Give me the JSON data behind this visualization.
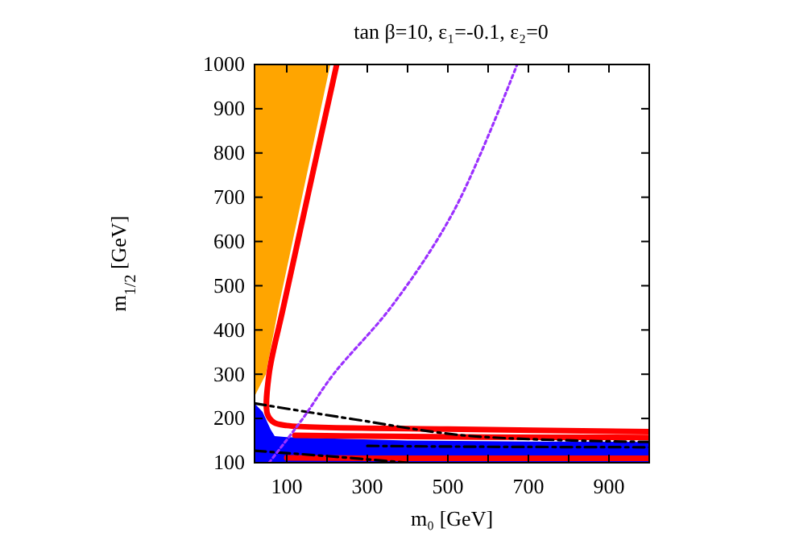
{
  "chart_data": {
    "type": "line",
    "title": "tan β=10,  ε₁=-0.1,  ε₂=0",
    "xlabel": "m₀  [GeV]",
    "ylabel": "m$_{1/2}$  [GeV]",
    "xlim": [
      20,
      1000
    ],
    "ylim": [
      100,
      1000
    ],
    "xticks": [
      100,
      {
        "value": 200,
        "label": null
      },
      300,
      {
        "value": 400,
        "label": null
      },
      500,
      {
        "value": 600,
        "label": null
      },
      700,
      {
        "value": 800,
        "label": null
      },
      900
    ],
    "yticks": [
      100,
      200,
      300,
      400,
      500,
      600,
      700,
      800,
      900,
      1000
    ],
    "grid": false,
    "legend": false,
    "series": [
      {
        "type": "area",
        "color": "#ffa500",
        "x": [
          20,
          20,
          48,
          80,
          120,
          208
        ],
        "values": [
          1000,
          250,
          300,
          453,
          624,
          1000
        ]
      },
      {
        "type": "area",
        "color": "#0000ff",
        "x": [
          20,
          40,
          60,
          70,
          100,
          200,
          400,
          700,
          1000
        ],
        "values": [
          234,
          215,
          175,
          160,
          158,
          155,
          150,
          148,
          147
        ]
      },
      {
        "type": "line",
        "color": "#ff0000",
        "line_style": "solid",
        "x": [
          224,
          92,
          56,
          52,
          68,
          100,
          500,
          1000
        ],
        "values": [
          1000,
          453,
          300,
          210,
          191,
          184,
          176,
          170
        ]
      },
      {
        "color": "#ff0000",
        "line_style": "solid",
        "x": [
          120,
          300,
          600,
          1000
        ],
        "values": [
          162,
          160,
          158,
          157
        ]
      },
      {
        "color": "#ff0000",
        "line_style": "solid",
        "x": [
          100,
          300,
          600,
          1000
        ],
        "values": [
          111,
          110,
          110,
          110
        ]
      },
      {
        "color": "#000000",
        "line_style": "dashed",
        "x": [
          20,
          268,
          548,
          1000
        ],
        "values": [
          234,
          198,
          161,
          147
        ]
      },
      {
        "color": "#000000",
        "line_style": "dashed",
        "x": [
          20,
          200,
          400
        ],
        "values": [
          127,
          115,
          100
        ]
      },
      {
        "color": "#000000",
        "line_style": "dashed",
        "x": [
          300,
          600,
          1000
        ],
        "values": [
          138,
          136,
          135
        ]
      },
      {
        "color": "#9b30ff",
        "line_style": "dotted",
        "x": [
          56,
          140,
          216,
          360,
          516,
          672
        ],
        "values": [
          100,
          200,
          300,
          453,
          671,
          1000
        ]
      }
    ]
  }
}
